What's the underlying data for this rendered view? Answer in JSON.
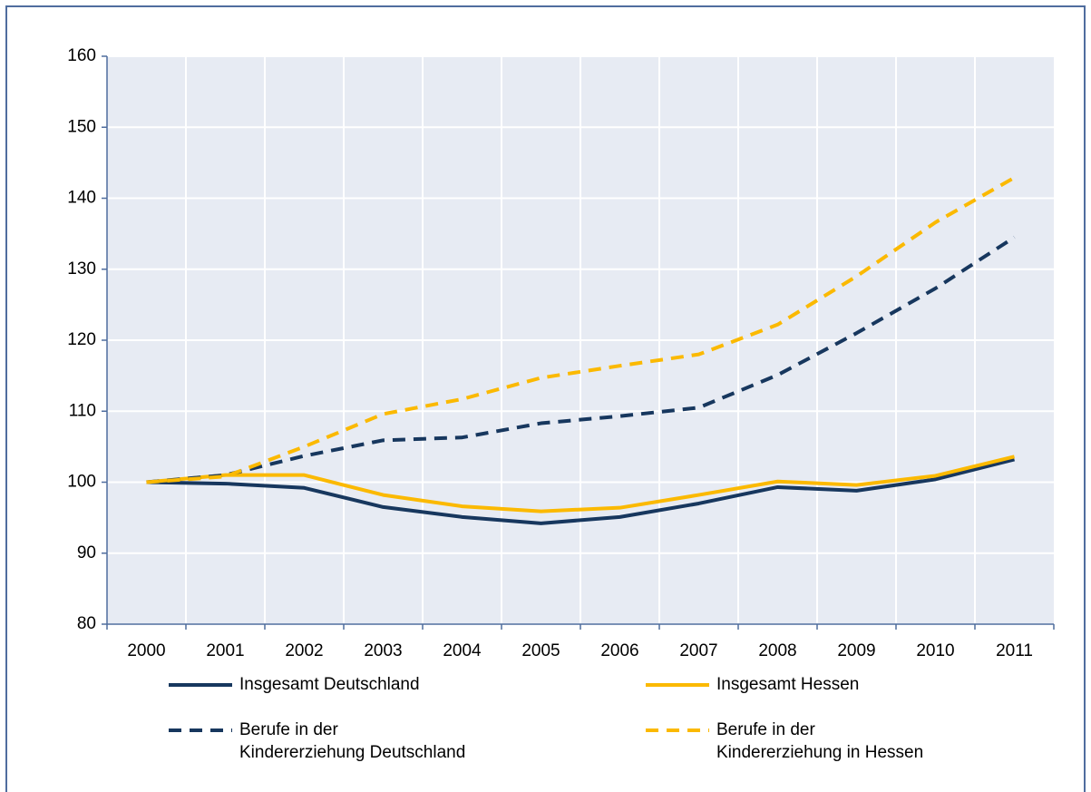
{
  "chart_data": {
    "type": "line",
    "categories": [
      "2000",
      "2001",
      "2002",
      "2003",
      "2004",
      "2005",
      "2006",
      "2007",
      "2008",
      "2009",
      "2010",
      "2011"
    ],
    "series": [
      {
        "name": "Insgesamt Deutschland",
        "color": "#17375e",
        "dash": false,
        "values": [
          100,
          99.8,
          99.2,
          96.5,
          95.1,
          94.2,
          95.1,
          97.0,
          99.3,
          98.8,
          100.4,
          103.2
        ]
      },
      {
        "name": "Insgesamt Hessen",
        "color": "#fbb900",
        "dash": false,
        "values": [
          100,
          101,
          101,
          98.2,
          96.6,
          95.9,
          96.4,
          98.2,
          100.1,
          99.6,
          100.9,
          103.6
        ]
      },
      {
        "name": "Berufe in der\nKindererziehung Deutschland",
        "color": "#17375e",
        "dash": true,
        "values": [
          100,
          101,
          103.7,
          105.9,
          106.3,
          108.3,
          109.3,
          110.5,
          115.1,
          121.0,
          127.3,
          134.5
        ]
      },
      {
        "name": "Berufe in der\nKindererziehung in Hessen",
        "color": "#fbb900",
        "dash": true,
        "values": [
          100,
          100.8,
          105.0,
          109.6,
          111.7,
          114.7,
          116.4,
          118.0,
          122.2,
          129.0,
          136.6,
          142.9
        ]
      }
    ],
    "ylim": [
      80,
      160
    ],
    "yticks": [
      80,
      90,
      100,
      110,
      120,
      130,
      140,
      150,
      160
    ],
    "grid": true
  }
}
